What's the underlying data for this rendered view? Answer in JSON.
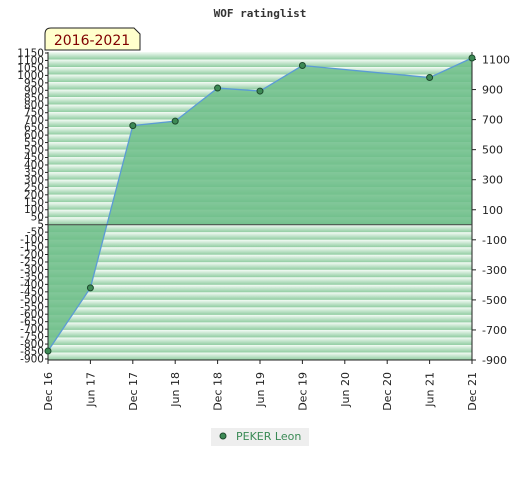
{
  "chart_data": {
    "type": "area",
    "title": "WOF ratinglist",
    "period_label": "2016-2021",
    "x_labels": [
      "Dec 16",
      "Jun 17",
      "Dec 17",
      "Jun 18",
      "Dec 18",
      "Jun 19",
      "Dec 19",
      "Jun 20",
      "Dec 20",
      "Jun 21",
      "Dec 21"
    ],
    "left_ticks": [
      "1150",
      "1100",
      "1050",
      "1000",
      "950",
      "900",
      "850",
      "800",
      "750",
      "700",
      "650",
      "600",
      "550",
      "500",
      "450",
      "400",
      "350",
      "300",
      "250",
      "200",
      "150",
      "100",
      "50",
      "5",
      "-50",
      "-100",
      "-150",
      "-200",
      "-250",
      "-300",
      "-350",
      "-400",
      "-450",
      "-500",
      "-550",
      "-600",
      "-650",
      "-700",
      "-750",
      "-800",
      "-850",
      "-900"
    ],
    "right_ticks": [
      "1100",
      "900",
      "700",
      "500",
      "300",
      "100",
      "-100",
      "-300",
      "-500",
      "-700",
      "-900"
    ],
    "ylim": [
      -900,
      1150
    ],
    "grid": true,
    "legend_position": "bottom-center",
    "series": [
      {
        "name": "PEKER Leon",
        "x": [
          0,
          1,
          2,
          3,
          4,
          5,
          6,
          9,
          10
        ],
        "values": [
          -840,
          -420,
          660,
          690,
          910,
          890,
          1060,
          980,
          1110
        ]
      }
    ],
    "colors": {
      "fill": "#6fbe8a",
      "line": "#5b9bd5",
      "marker": "#3d8a55",
      "band_light": "#f4fbf5",
      "band_dark": "#8fcca0",
      "legend_bg": "#eeeeee",
      "period_bg": "#ffffcc"
    }
  }
}
